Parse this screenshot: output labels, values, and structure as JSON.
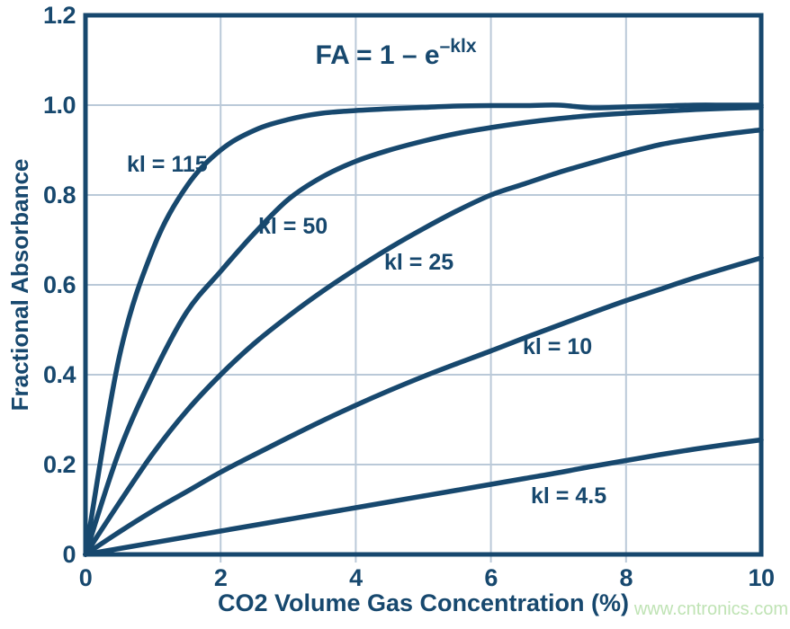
{
  "chart_data": {
    "type": "line",
    "formula": {
      "base": "FA = 1 – e",
      "exponent": "–klx"
    },
    "xlabel": "CO2 Volume Gas Concentration (%)",
    "ylabel": "Fractional Absorbance",
    "xlim": [
      0,
      10
    ],
    "ylim": [
      0,
      1.2
    ],
    "grid": true,
    "legend_position": "inline-curve-labels",
    "x_tick_values": [
      0,
      2,
      4,
      6,
      8,
      10
    ],
    "x_tick_labels": [
      "0",
      "2",
      "4",
      "6",
      "8",
      "10"
    ],
    "y_tick_values": [
      0,
      0.2,
      0.4,
      0.6,
      0.8,
      1.0,
      1.2
    ],
    "y_tick_labels": [
      "0",
      "0.2",
      "0.4",
      "0.6",
      "0.8",
      "1.0",
      "1.2"
    ],
    "x": [
      0,
      0.5,
      1,
      1.5,
      2,
      2.5,
      3,
      3.5,
      4,
      4.5,
      5,
      5.5,
      6,
      6.5,
      7,
      7.5,
      8,
      8.5,
      9,
      9.5,
      10
    ],
    "series": [
      {
        "id": "kl-115",
        "label": "kl = 115",
        "kl": 115,
        "values": [
          0,
          0.44,
          0.68,
          0.82,
          0.9,
          0.944,
          0.968,
          0.982,
          0.988,
          0.992,
          0.995,
          0.998,
          0.999,
          0.999,
          1.0,
          0.994,
          0.996,
          0.998,
          1.0,
          1.0,
          1.0
        ]
      },
      {
        "id": "kl-50",
        "label": "kl = 50",
        "kl": 50,
        "values": [
          0,
          0.23,
          0.4,
          0.54,
          0.63,
          0.715,
          0.79,
          0.84,
          0.875,
          0.9,
          0.92,
          0.937,
          0.95,
          0.961,
          0.97,
          0.977,
          0.982,
          0.986,
          0.99,
          0.993,
          0.995
        ]
      },
      {
        "id": "kl-25",
        "label": "kl = 25",
        "kl": 25,
        "values": [
          0,
          0.115,
          0.225,
          0.32,
          0.4,
          0.47,
          0.53,
          0.585,
          0.635,
          0.682,
          0.725,
          0.765,
          0.8,
          0.825,
          0.85,
          0.872,
          0.893,
          0.912,
          0.925,
          0.936,
          0.945
        ]
      },
      {
        "id": "kl-10",
        "label": "kl = 10",
        "kl": 10,
        "values": [
          0,
          0.05,
          0.097,
          0.14,
          0.183,
          0.222,
          0.26,
          0.297,
          0.332,
          0.365,
          0.396,
          0.425,
          0.453,
          0.482,
          0.51,
          0.538,
          0.565,
          0.59,
          0.615,
          0.638,
          0.66
        ]
      },
      {
        "id": "kl-4.5",
        "label": "kl = 4.5",
        "kl": 4.5,
        "values": [
          0,
          0.013,
          0.026,
          0.039,
          0.052,
          0.065,
          0.078,
          0.091,
          0.104,
          0.117,
          0.13,
          0.143,
          0.156,
          0.169,
          0.182,
          0.196,
          0.209,
          0.222,
          0.234,
          0.245,
          0.255
        ]
      }
    ],
    "colors": {
      "line": "#17486e",
      "grid": "#bac9d8",
      "text": "#17486e",
      "watermark": "#bfe3b4"
    },
    "watermark": "www.cntronics.com"
  }
}
